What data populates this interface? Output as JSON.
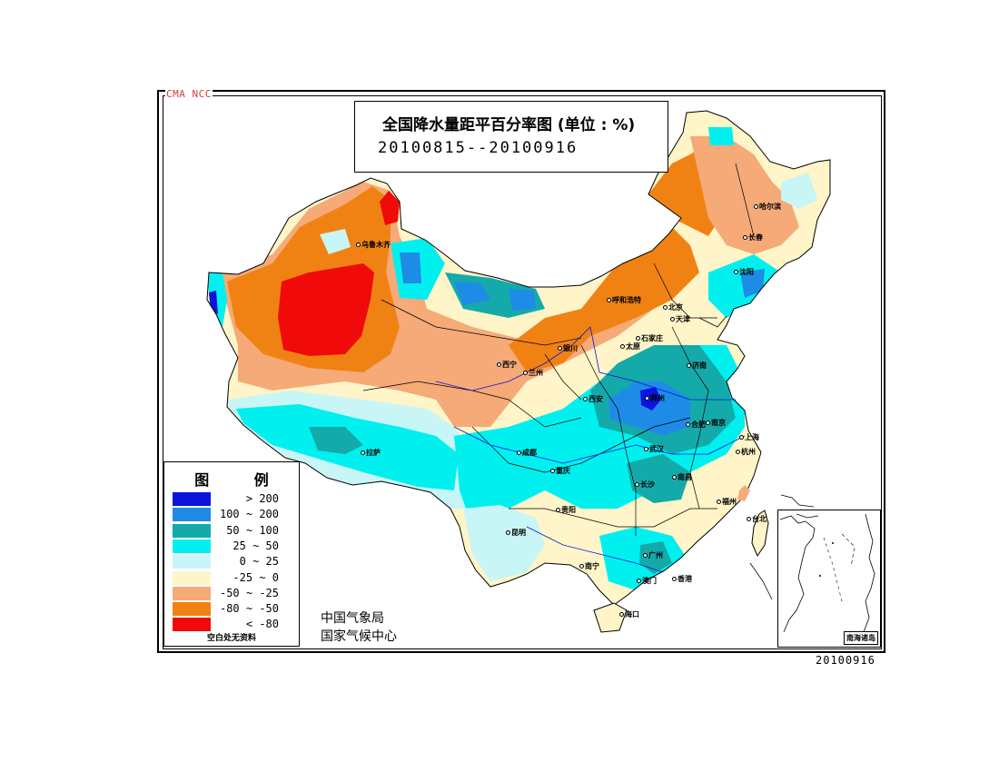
{
  "header": {
    "agency_mark": "CMA NCC",
    "title": "全国降水量距平百分率图 (单位 : %)",
    "date_range": "20100815--20100916"
  },
  "legend": {
    "title": "图 例",
    "items": [
      {
        "label": "> 200",
        "color": "#0a14dc"
      },
      {
        "label": "100 ~ 200",
        "color": "#1e8ce6"
      },
      {
        "label": "50 ~ 100",
        "color": "#14aaaa"
      },
      {
        "label": "25 ~ 50",
        "color": "#00f0f0"
      },
      {
        "label": "0 ~ 25",
        "color": "#c8f5f5"
      },
      {
        "label": "-25 ~ 0",
        "color": "#fff5c8"
      },
      {
        "label": "-50 ~ -25",
        "color": "#f5aa78"
      },
      {
        "label": "-80 ~ -50",
        "color": "#f08214"
      },
      {
        "label": "< -80",
        "color": "#f00a0a"
      }
    ],
    "note": "空白处无资料"
  },
  "producer": {
    "line1": "中国气象局",
    "line2": "国家气候中心"
  },
  "issue_date": "20100916",
  "inset": {
    "label": "南海诸岛"
  },
  "cities": [
    {
      "name": "乌鲁木齐"
    },
    {
      "name": "哈尔滨"
    },
    {
      "name": "长春"
    },
    {
      "name": "沈阳"
    },
    {
      "name": "呼和浩特"
    },
    {
      "name": "北京"
    },
    {
      "name": "天津"
    },
    {
      "name": "石家庄"
    },
    {
      "name": "太原"
    },
    {
      "name": "银川"
    },
    {
      "name": "西宁"
    },
    {
      "name": "兰州"
    },
    {
      "name": "济南"
    },
    {
      "name": "郑州"
    },
    {
      "name": "西安"
    },
    {
      "name": "合肥"
    },
    {
      "name": "南京"
    },
    {
      "name": "上海"
    },
    {
      "name": "杭州"
    },
    {
      "name": "武汉"
    },
    {
      "name": "成都"
    },
    {
      "name": "重庆"
    },
    {
      "name": "拉萨"
    },
    {
      "name": "长沙"
    },
    {
      "name": "南昌"
    },
    {
      "name": "福州"
    },
    {
      "name": "贵阳"
    },
    {
      "name": "昆明"
    },
    {
      "name": "南宁"
    },
    {
      "name": "广州"
    },
    {
      "name": "澳门"
    },
    {
      "name": "香港"
    },
    {
      "name": "台北"
    },
    {
      "name": "海口"
    }
  ]
}
